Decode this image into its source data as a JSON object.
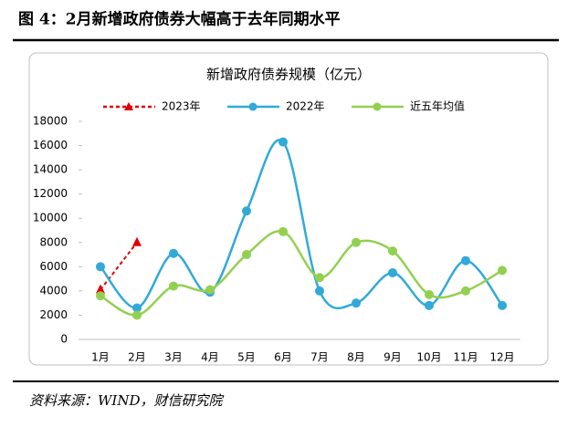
{
  "figure_title": "图 4：2月新增政府债券大幅高于去年同期水平",
  "source": "资料来源：WIND，财信研究院",
  "chart_data": {
    "type": "line",
    "title": "新增政府债券规模（亿元）",
    "categories": [
      "1月",
      "2月",
      "3月",
      "4月",
      "5月",
      "6月",
      "7月",
      "8月",
      "9月",
      "10月",
      "11月",
      "12月"
    ],
    "series": [
      {
        "name": "2023年",
        "color": "#e00000",
        "values": [
          4100,
          8000,
          null,
          null,
          null,
          null,
          null,
          null,
          null,
          null,
          null,
          null
        ]
      },
      {
        "name": "2022年",
        "color": "#31a9d9",
        "values": [
          6000,
          2600,
          7100,
          3900,
          10600,
          16300,
          4000,
          3000,
          5500,
          2800,
          6500,
          2800
        ]
      },
      {
        "name": "近五年均值",
        "color": "#92d050",
        "values": [
          3600,
          2000,
          4400,
          4100,
          7000,
          8900,
          5100,
          8000,
          7300,
          3700,
          4000,
          5700
        ]
      }
    ],
    "ylim": [
      0,
      18000
    ],
    "yticks": [
      0,
      2000,
      4000,
      6000,
      8000,
      10000,
      12000,
      14000,
      16000,
      18000
    ],
    "grid": false
  }
}
